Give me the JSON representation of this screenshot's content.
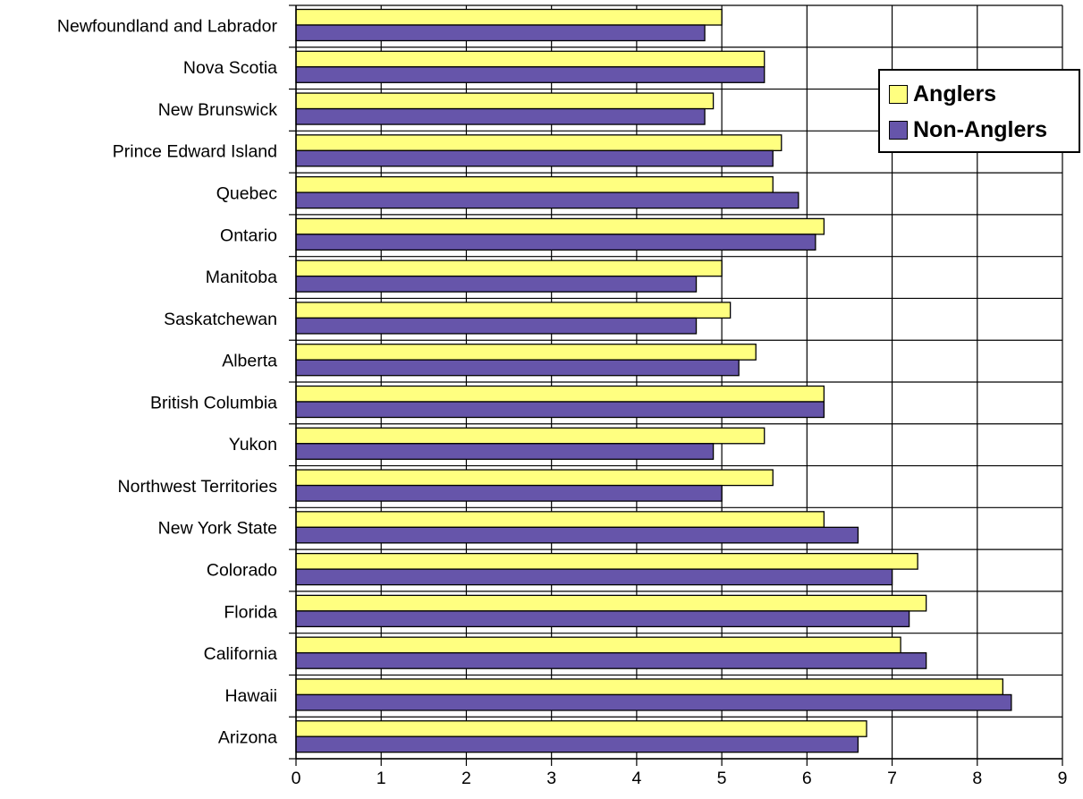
{
  "chart_data": {
    "type": "bar",
    "orientation": "horizontal",
    "categories": [
      "Newfoundland and Labrador",
      "Nova Scotia",
      "New Brunswick",
      "Prince Edward Island",
      "Quebec",
      "Ontario",
      "Manitoba",
      "Saskatchewan",
      "Alberta",
      "British Columbia",
      "Yukon",
      "Northwest Territories",
      "New York State",
      "Colorado",
      "Florida",
      "California",
      "Hawaii",
      "Arizona"
    ],
    "series": [
      {
        "name": "Anglers",
        "color": "#ffff80",
        "values": [
          5.0,
          5.5,
          4.9,
          5.7,
          5.6,
          6.2,
          5.0,
          5.1,
          5.4,
          6.2,
          5.5,
          5.6,
          6.2,
          7.3,
          7.4,
          7.1,
          8.3,
          6.7
        ]
      },
      {
        "name": "Non-Anglers",
        "color": "#6655aa",
        "values": [
          4.8,
          5.5,
          4.8,
          5.6,
          5.9,
          6.1,
          4.7,
          4.7,
          5.2,
          6.2,
          4.9,
          5.0,
          6.6,
          7.0,
          7.2,
          7.4,
          8.4,
          6.6
        ]
      }
    ],
    "x_ticks": [
      "0",
      "1",
      "2",
      "3",
      "4",
      "5",
      "6",
      "7",
      "8",
      "9"
    ],
    "xlim": [
      0,
      9
    ],
    "grid": true,
    "legend_position": "top-right",
    "title": "",
    "xlabel": "",
    "ylabel": ""
  }
}
